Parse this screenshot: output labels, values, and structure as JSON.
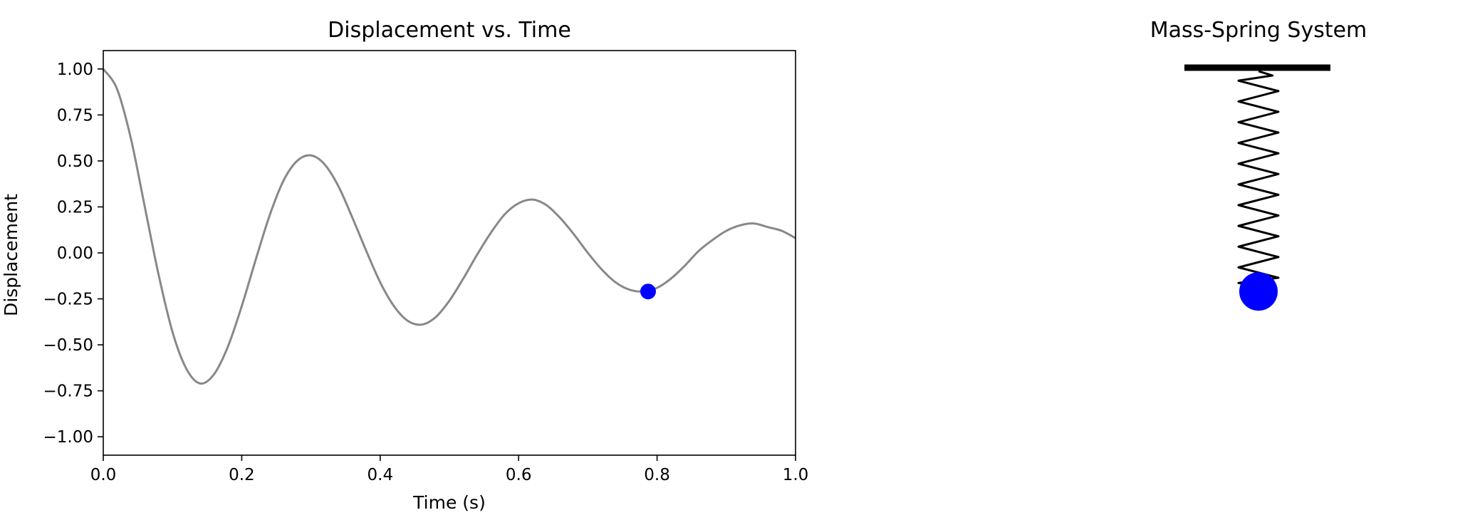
{
  "chart_data": [
    {
      "type": "line",
      "title": "Displacement vs. Time",
      "xlabel": "Time (s)",
      "ylabel": "Displacement",
      "xlim": [
        0.0,
        1.0
      ],
      "ylim": [
        -1.1,
        1.1
      ],
      "xticks": [
        "0.0",
        "0.2",
        "0.4",
        "0.6",
        "0.8",
        "1.0"
      ],
      "yticks": [
        "1.00",
        "0.75",
        "0.50",
        "0.25",
        "0.00",
        "−0.25",
        "−0.50",
        "−0.75",
        "−1.00"
      ],
      "grid": false,
      "series": [
        {
          "color": "#888888",
          "x": [
            0.0,
            0.02,
            0.04,
            0.06,
            0.08,
            0.1,
            0.12,
            0.14,
            0.16,
            0.18,
            0.2,
            0.22,
            0.24,
            0.26,
            0.28,
            0.3,
            0.32,
            0.34,
            0.36,
            0.38,
            0.4,
            0.42,
            0.44,
            0.46,
            0.48,
            0.5,
            0.52,
            0.54,
            0.56,
            0.58,
            0.6,
            0.62,
            0.64,
            0.66,
            0.68,
            0.7,
            0.72,
            0.74,
            0.76,
            0.78,
            0.8,
            0.82,
            0.84,
            0.86,
            0.88,
            0.9,
            0.92,
            0.94,
            0.96,
            0.98,
            1.0
          ],
          "y": [
            1.0,
            0.89,
            0.62,
            0.25,
            -0.12,
            -0.43,
            -0.63,
            -0.71,
            -0.66,
            -0.51,
            -0.29,
            -0.04,
            0.2,
            0.39,
            0.5,
            0.53,
            0.48,
            0.36,
            0.19,
            0.01,
            -0.16,
            -0.29,
            -0.37,
            -0.39,
            -0.35,
            -0.26,
            -0.14,
            -0.01,
            0.11,
            0.21,
            0.27,
            0.29,
            0.26,
            0.19,
            0.1,
            0.0,
            -0.09,
            -0.16,
            -0.2,
            -0.21,
            -0.19,
            -0.14,
            -0.07,
            0.01,
            0.07,
            0.12,
            0.15,
            0.16,
            0.14,
            0.12,
            0.08
          ]
        }
      ],
      "marker": {
        "x": 0.787,
        "y": -0.21,
        "color": "#0000ff"
      }
    },
    {
      "type": "diagram",
      "title": "Mass-Spring System",
      "mass_displacement": -0.21,
      "spring_coils": 10,
      "support_color": "#000000",
      "spring_color": "#000000",
      "mass_color": "#0000ff"
    }
  ]
}
